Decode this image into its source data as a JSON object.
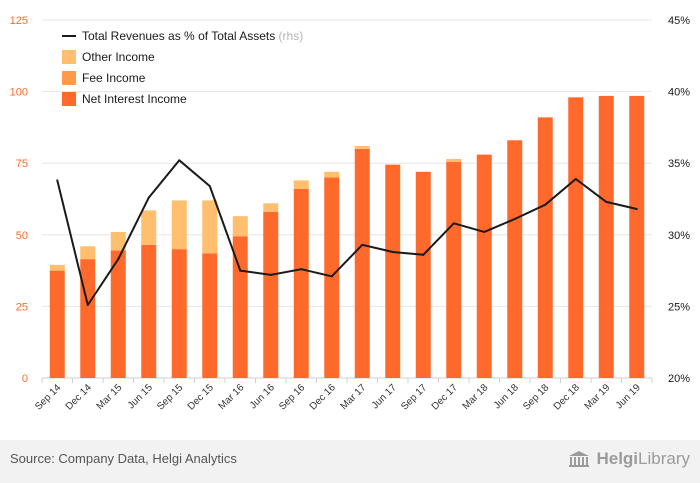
{
  "chart_data": {
    "type": "bar",
    "stacked": true,
    "categories": [
      "Sep 14",
      "Dec 14",
      "Mar 15",
      "Jun 15",
      "Sep 15",
      "Dec 15",
      "Mar 16",
      "Jun 16",
      "Sep 16",
      "Dec 16",
      "Mar 17",
      "Jun 17",
      "Sep 17",
      "Dec 17",
      "Mar 18",
      "Jun 18",
      "Sep 18",
      "Dec 18",
      "Mar 19",
      "Jun 19"
    ],
    "series": [
      {
        "name": "Net Interest Income",
        "color": "#ff6a2c",
        "axis": "left",
        "values": [
          37.5,
          41.5,
          44.5,
          46.5,
          45,
          43.5,
          49.5,
          58,
          66,
          70,
          80,
          74.5,
          72,
          75.5,
          78,
          83,
          91,
          98,
          98.5,
          98.5
        ]
      },
      {
        "name": "Fee Income",
        "color": "#ff9a4a",
        "axis": "left",
        "values": [
          0,
          0,
          0,
          0,
          0,
          0,
          0,
          0,
          0,
          0,
          0,
          0,
          0,
          0,
          0,
          0,
          0,
          0,
          0,
          0
        ]
      },
      {
        "name": "Other Income",
        "color": "#ffbf6e",
        "axis": "left",
        "values": [
          2,
          4.5,
          6.5,
          12,
          17,
          18.5,
          7,
          3,
          3,
          2,
          1,
          0,
          0,
          1,
          0,
          0,
          0,
          0,
          0,
          0
        ]
      },
      {
        "name": "Total Revenues as % of Total Assets",
        "type": "line",
        "color": "#1a1a1a",
        "axis": "right",
        "values": [
          33.8,
          25.1,
          28.3,
          32.6,
          35.2,
          33.4,
          27.5,
          27.2,
          27.6,
          27.1,
          29.3,
          28.8,
          28.6,
          30.8,
          30.2,
          31.1,
          32.1,
          33.9,
          32.3,
          31.8
        ]
      }
    ],
    "legend": [
      {
        "label": "Total Revenues as % of Total Assets",
        "suffix": "(rhs)",
        "kind": "line",
        "color": "#1a1a1a"
      },
      {
        "label": "Other Income",
        "kind": "box",
        "color": "#ffbf6e"
      },
      {
        "label": "Fee Income",
        "kind": "box",
        "color": "#ff9a4a"
      },
      {
        "label": "Net Interest Income",
        "kind": "box",
        "color": "#ff6a2c"
      }
    ],
    "y_left": {
      "min": 0,
      "max": 125,
      "ticks": [
        "0",
        "25",
        "50",
        "75",
        "100",
        "125"
      ],
      "tick_color": "#ff6a2c"
    },
    "y_right": {
      "min": 20,
      "max": 45,
      "ticks": [
        "20%",
        "25%",
        "30%",
        "35%",
        "40%",
        "45%"
      ],
      "tick_color": "#1a1a1a"
    },
    "title": "",
    "xlabel": "",
    "ylabel": "",
    "grid": true,
    "legend_position": "top-left"
  },
  "footer": {
    "source": "Source: Company Data, Helgi Analytics",
    "brand_name": "Helgi",
    "brand_suffix": "Library",
    "brand_icon": "building-icon"
  }
}
